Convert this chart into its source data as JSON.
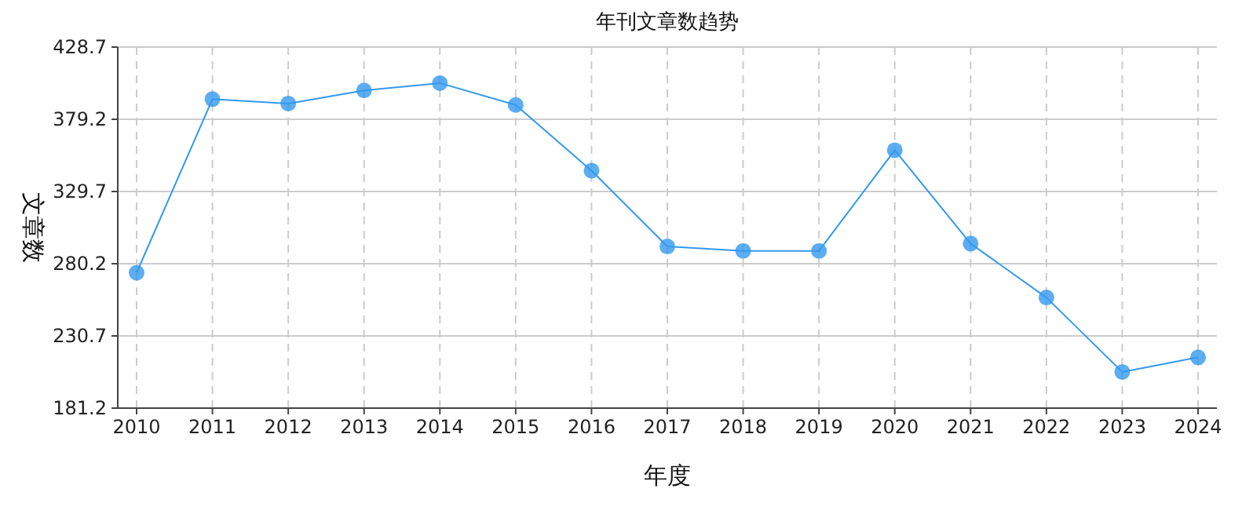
{
  "chart_data": {
    "type": "line",
    "title": "年刊文章数趋势",
    "xlabel": "年度",
    "ylabel": "文章数",
    "categories": [
      "2010",
      "2011",
      "2012",
      "2013",
      "2014",
      "2015",
      "2016",
      "2017",
      "2018",
      "2019",
      "2020",
      "2021",
      "2022",
      "2023",
      "2024"
    ],
    "series": [
      {
        "color": "#3399ee",
        "values": [
          274,
          393,
          390,
          399,
          404,
          389,
          344,
          292,
          289,
          289,
          358,
          294,
          257,
          206,
          216
        ]
      }
    ],
    "ylim": [
      181.2,
      428.7
    ],
    "yticks": [
      181.2,
      230.7,
      280.2,
      329.7,
      379.2,
      428.7
    ],
    "grid": true,
    "marker": "circle",
    "line_style": "solid"
  }
}
